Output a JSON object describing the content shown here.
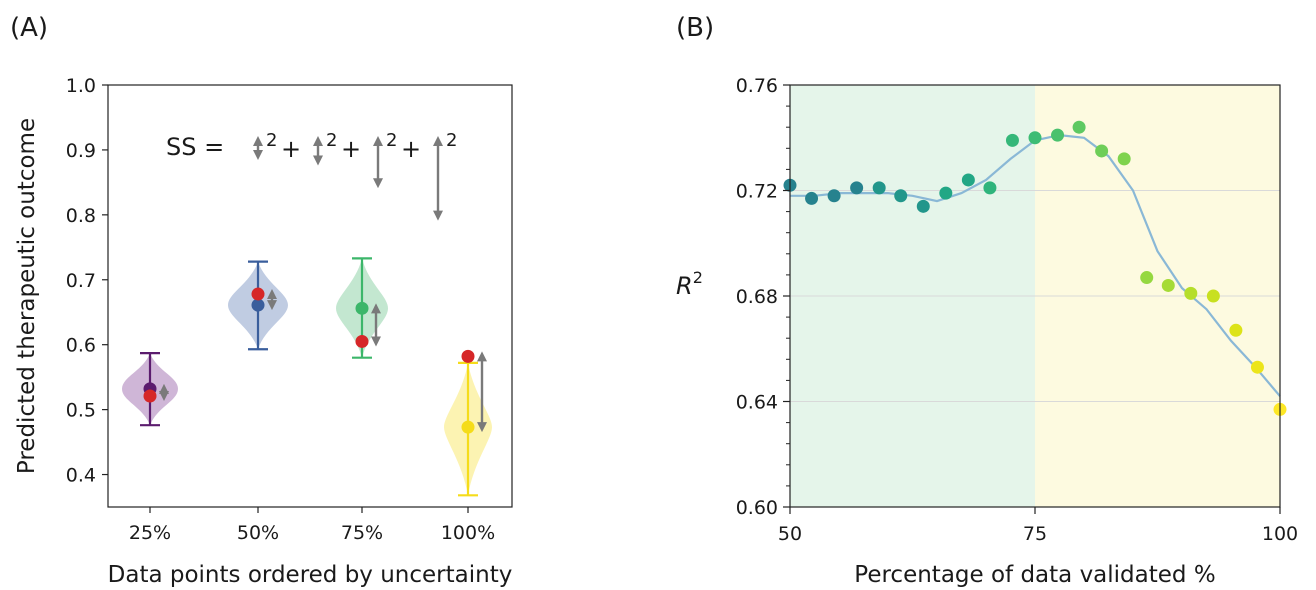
{
  "chart_data": [
    {
      "type": "violin",
      "panel_label": "(A)",
      "xlabel": "Data points ordered by uncertainty",
      "ylabel": "Predicted therapeutic outcome",
      "ylim": [
        0.35,
        1.0
      ],
      "yticks": [
        "0.4",
        "0.5",
        "0.6",
        "0.7",
        "0.8",
        "0.9",
        "1.0"
      ],
      "categories": [
        "25%",
        "50%",
        "75%",
        "100%"
      ],
      "colors": [
        "#5b1c6e",
        "#3a5e9c",
        "#3cb66a",
        "#f5dc1a"
      ],
      "fill_colors": [
        "#c7a9d0",
        "#b5c3dd",
        "#b9e3c8",
        "#fbf1a5"
      ],
      "mean_values": [
        0.532,
        0.661,
        0.656,
        0.473
      ],
      "min_values": [
        0.476,
        0.593,
        0.58,
        0.368
      ],
      "max_values": [
        0.587,
        0.728,
        0.733,
        0.572
      ],
      "true_values": [
        0.521,
        0.678,
        0.605,
        0.582
      ],
      "marker_true_color": "#d62728",
      "formula": {
        "lhs": "SS =",
        "plus": "+",
        "exponent": "2",
        "arrow_lengths": [
          0.02,
          0.03,
          0.065,
          0.115
        ]
      }
    },
    {
      "type": "scatter",
      "panel_label": "(B)",
      "xlabel": "Percentage of data validated %",
      "ylabel_base": "R",
      "ylabel_exp": "2",
      "xlim": [
        50,
        100
      ],
      "ylim": [
        0.6,
        0.76
      ],
      "xticks": [
        "50",
        "75",
        "100"
      ],
      "yticks": [
        "0.60",
        "0.64",
        "0.68",
        "0.72",
        "0.76"
      ],
      "shaded_regions": [
        {
          "x0": 50,
          "x1": 75,
          "color": "#e5f5ea"
        },
        {
          "x0": 75,
          "x1": 100,
          "color": "#fdfae0"
        }
      ],
      "points": {
        "x": [
          50,
          52.2,
          54.5,
          56.8,
          59.1,
          61.3,
          63.6,
          65.9,
          68.2,
          70.4,
          72.7,
          75,
          77.3,
          79.5,
          81.8,
          84.1,
          86.4,
          88.6,
          90.9,
          93.2,
          95.5,
          97.7,
          100
        ],
        "y": [
          0.722,
          0.717,
          0.718,
          0.721,
          0.721,
          0.718,
          0.714,
          0.719,
          0.724,
          0.721,
          0.739,
          0.74,
          0.741,
          0.744,
          0.735,
          0.732,
          0.687,
          0.684,
          0.681,
          0.68,
          0.667,
          0.653,
          0.637
        ],
        "colors": [
          "#26828e",
          "#26828e",
          "#26828e",
          "#26828e",
          "#22968b",
          "#22968b",
          "#22968b",
          "#22a785",
          "#22a785",
          "#2fb47c",
          "#35b779",
          "#3dbc74",
          "#4ac16d",
          "#5ec962",
          "#6ece58",
          "#7fd34e",
          "#95d840",
          "#a5db36",
          "#b5de2b",
          "#c8e020",
          "#dde318",
          "#ece51b",
          "#fde725"
        ]
      },
      "trend": {
        "x": [
          50,
          52.5,
          55,
          57.5,
          60,
          62.5,
          65,
          67.5,
          70,
          72.5,
          75,
          77.5,
          80,
          82.5,
          85,
          87.5,
          90,
          92.5,
          95,
          97.5,
          100
        ],
        "y": [
          0.718,
          0.718,
          0.719,
          0.719,
          0.719,
          0.718,
          0.716,
          0.719,
          0.724,
          0.732,
          0.739,
          0.741,
          0.74,
          0.733,
          0.72,
          0.697,
          0.683,
          0.675,
          0.663,
          0.653,
          0.642
        ],
        "color": "#8ab8d6"
      },
      "grid": "y"
    }
  ]
}
